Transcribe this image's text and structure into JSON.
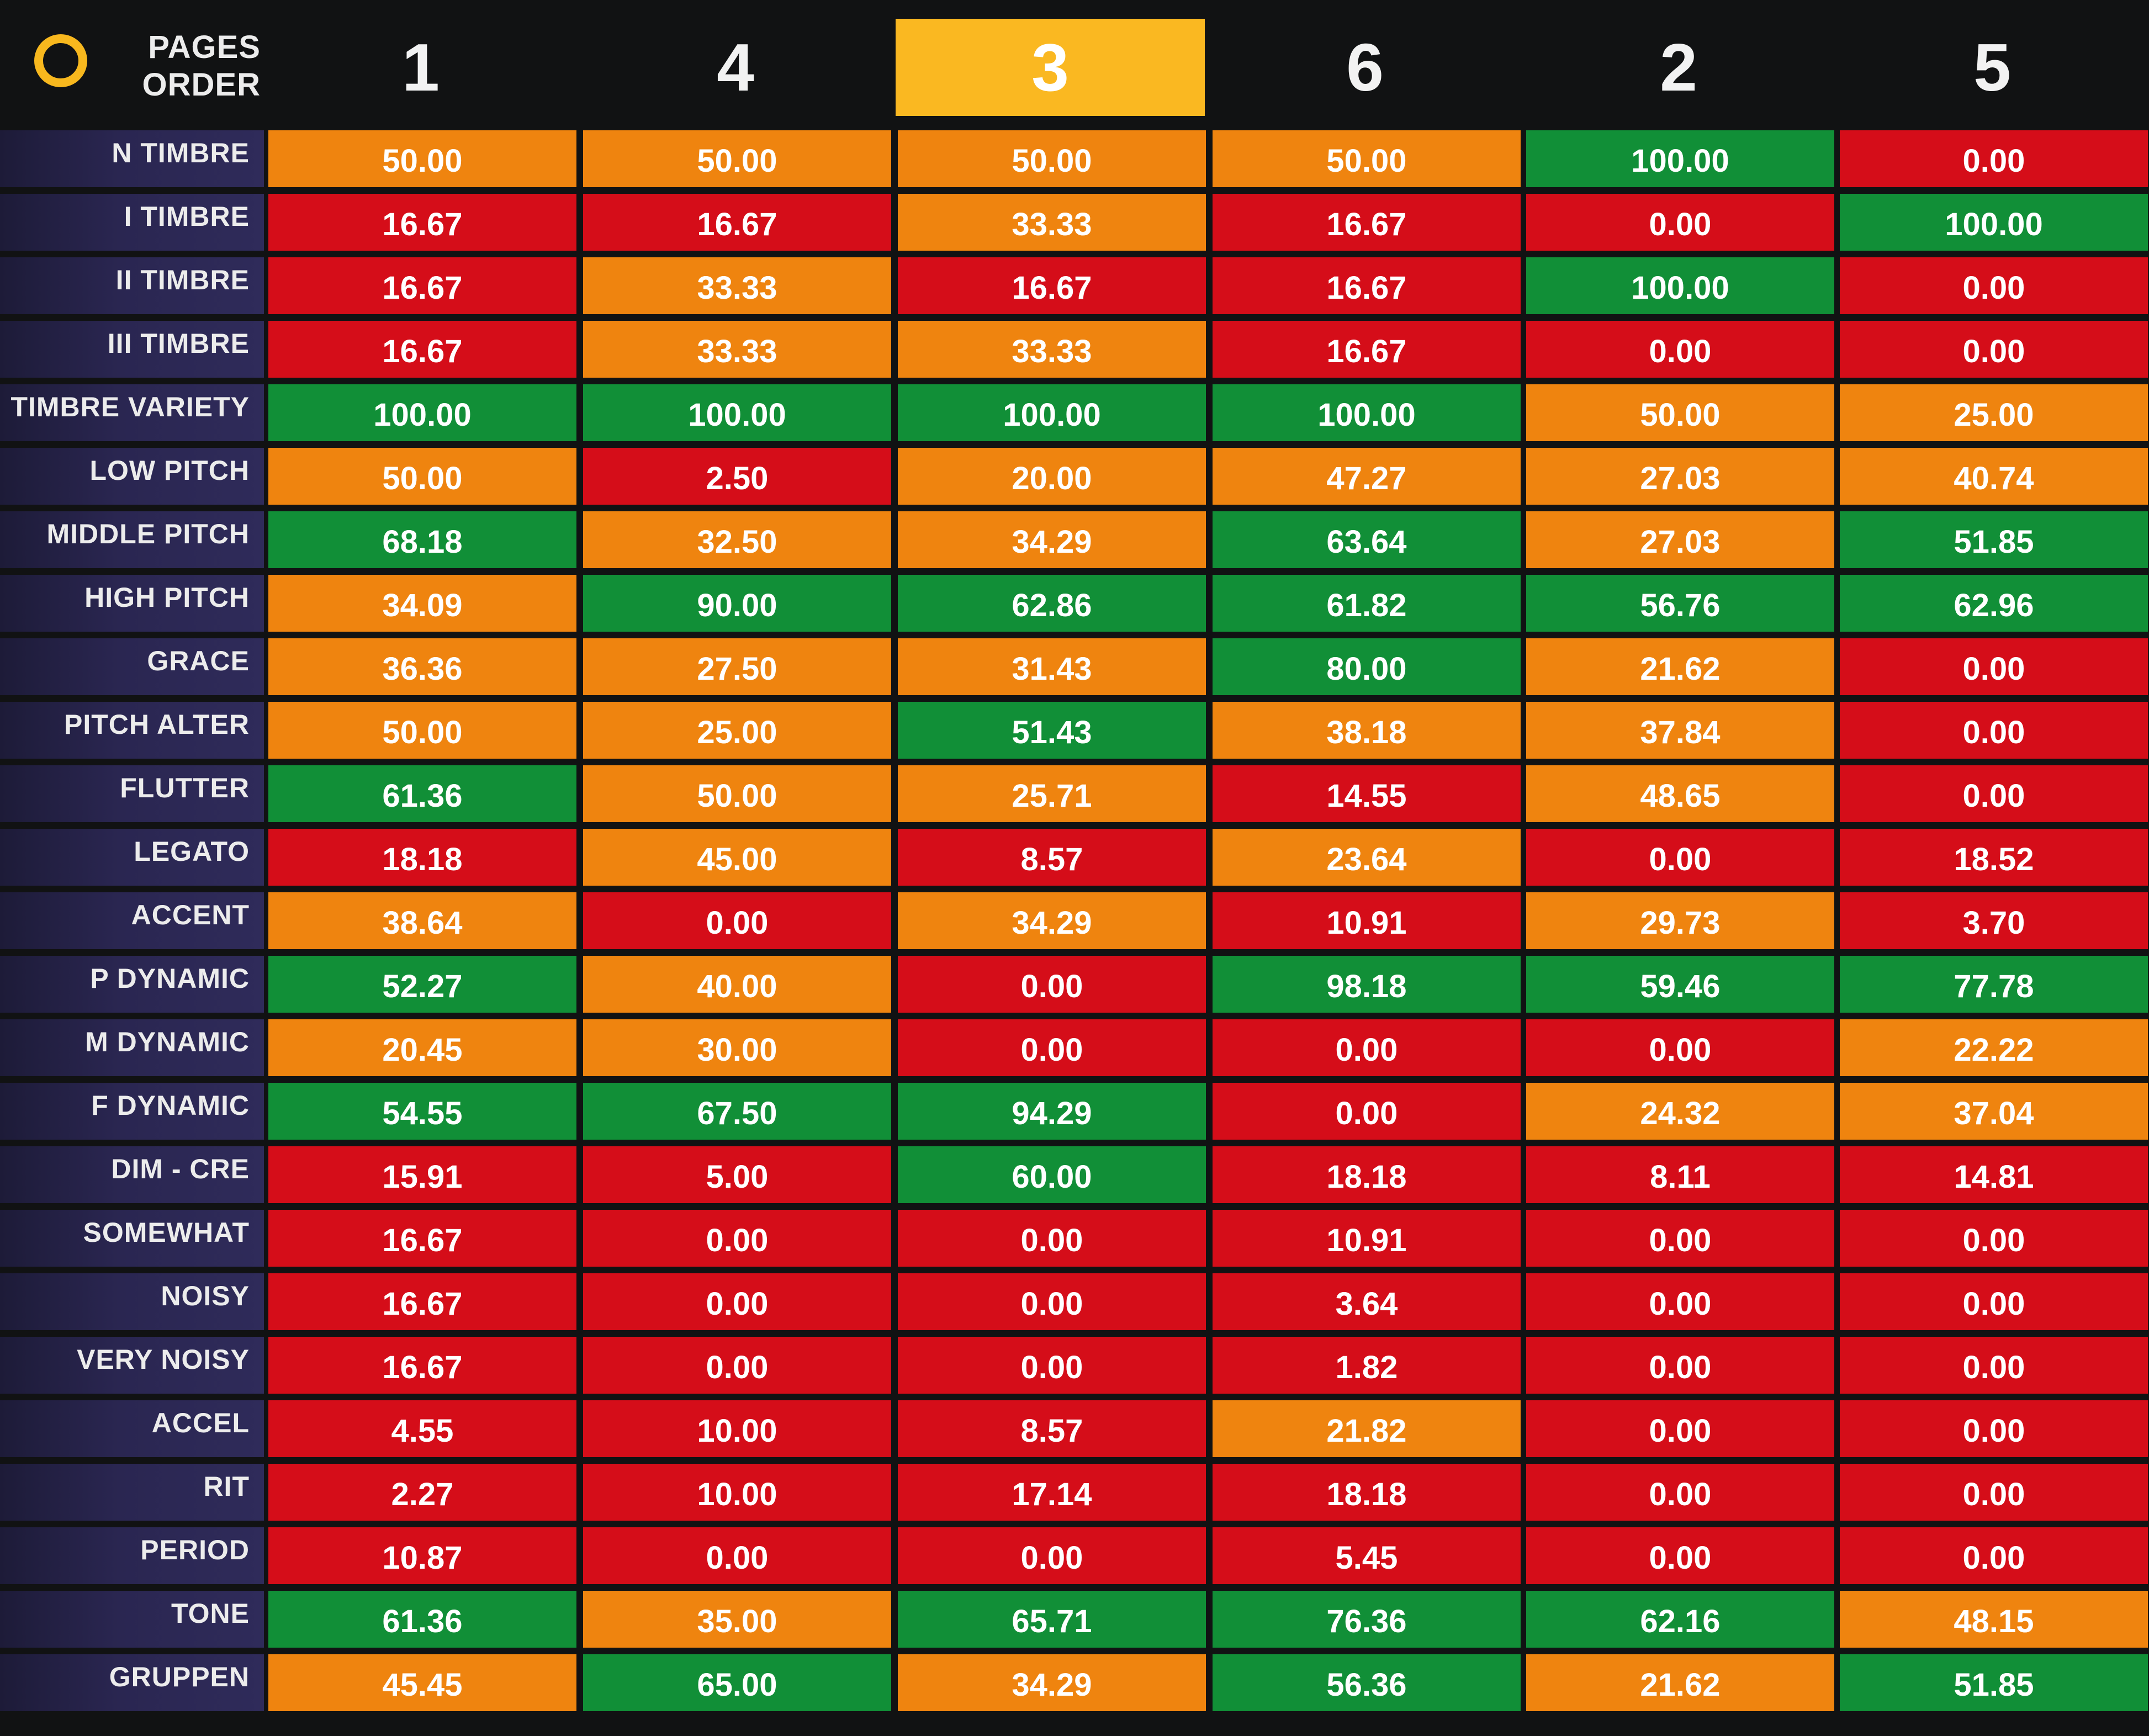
{
  "header": {
    "order_label_line1": "PAGES",
    "order_label_line2": "ORDER",
    "page_tabs": [
      "1",
      "4",
      "3",
      "6",
      "2",
      "5"
    ],
    "active_tab": "3",
    "accent_color": "#fab821"
  },
  "legend_colors": {
    "red": "#d50d19",
    "orange": "#ef840f",
    "green": "#118f37"
  },
  "rows": [
    {
      "label": "N TIMBRE",
      "values": [
        "50.00",
        "50.00",
        "50.00",
        "50.00",
        "100.00",
        "0.00"
      ],
      "colors": [
        "orange",
        "orange",
        "orange",
        "orange",
        "green",
        "red"
      ]
    },
    {
      "label": "I TIMBRE",
      "values": [
        "16.67",
        "16.67",
        "33.33",
        "16.67",
        "0.00",
        "100.00"
      ],
      "colors": [
        "red",
        "red",
        "orange",
        "red",
        "red",
        "green"
      ]
    },
    {
      "label": "II TIMBRE",
      "values": [
        "16.67",
        "33.33",
        "16.67",
        "16.67",
        "100.00",
        "0.00"
      ],
      "colors": [
        "red",
        "orange",
        "red",
        "red",
        "green",
        "red"
      ]
    },
    {
      "label": "III TIMBRE",
      "values": [
        "16.67",
        "33.33",
        "33.33",
        "16.67",
        "0.00",
        "0.00"
      ],
      "colors": [
        "red",
        "orange",
        "orange",
        "red",
        "red",
        "red"
      ]
    },
    {
      "label": "TIMBRE VARIETY",
      "values": [
        "100.00",
        "100.00",
        "100.00",
        "100.00",
        "50.00",
        "25.00"
      ],
      "colors": [
        "green",
        "green",
        "green",
        "green",
        "orange",
        "orange"
      ]
    },
    {
      "label": "LOW PITCH",
      "values": [
        "50.00",
        "2.50",
        "20.00",
        "47.27",
        "27.03",
        "40.74"
      ],
      "colors": [
        "orange",
        "red",
        "orange",
        "orange",
        "orange",
        "orange"
      ]
    },
    {
      "label": "MIDDLE PITCH",
      "values": [
        "68.18",
        "32.50",
        "34.29",
        "63.64",
        "27.03",
        "51.85"
      ],
      "colors": [
        "green",
        "orange",
        "orange",
        "green",
        "orange",
        "green"
      ]
    },
    {
      "label": "HIGH PITCH",
      "values": [
        "34.09",
        "90.00",
        "62.86",
        "61.82",
        "56.76",
        "62.96"
      ],
      "colors": [
        "orange",
        "green",
        "green",
        "green",
        "green",
        "green"
      ]
    },
    {
      "label": "GRACE",
      "values": [
        "36.36",
        "27.50",
        "31.43",
        "80.00",
        "21.62",
        "0.00"
      ],
      "colors": [
        "orange",
        "orange",
        "orange",
        "green",
        "orange",
        "red"
      ]
    },
    {
      "label": "PITCH ALTER",
      "values": [
        "50.00",
        "25.00",
        "51.43",
        "38.18",
        "37.84",
        "0.00"
      ],
      "colors": [
        "orange",
        "orange",
        "green",
        "orange",
        "orange",
        "red"
      ]
    },
    {
      "label": "FLUTTER",
      "values": [
        "61.36",
        "50.00",
        "25.71",
        "14.55",
        "48.65",
        "0.00"
      ],
      "colors": [
        "green",
        "orange",
        "orange",
        "red",
        "orange",
        "red"
      ]
    },
    {
      "label": "LEGATO",
      "values": [
        "18.18",
        "45.00",
        "8.57",
        "23.64",
        "0.00",
        "18.52"
      ],
      "colors": [
        "red",
        "orange",
        "red",
        "orange",
        "red",
        "red"
      ]
    },
    {
      "label": "ACCENT",
      "values": [
        "38.64",
        "0.00",
        "34.29",
        "10.91",
        "29.73",
        "3.70"
      ],
      "colors": [
        "orange",
        "red",
        "orange",
        "red",
        "orange",
        "red"
      ]
    },
    {
      "label": "P DYNAMIC",
      "values": [
        "52.27",
        "40.00",
        "0.00",
        "98.18",
        "59.46",
        "77.78"
      ],
      "colors": [
        "green",
        "orange",
        "red",
        "green",
        "green",
        "green"
      ]
    },
    {
      "label": "M DYNAMIC",
      "values": [
        "20.45",
        "30.00",
        "0.00",
        "0.00",
        "0.00",
        "22.22"
      ],
      "colors": [
        "orange",
        "orange",
        "red",
        "red",
        "red",
        "orange"
      ]
    },
    {
      "label": "F DYNAMIC",
      "values": [
        "54.55",
        "67.50",
        "94.29",
        "0.00",
        "24.32",
        "37.04"
      ],
      "colors": [
        "green",
        "green",
        "green",
        "red",
        "orange",
        "orange"
      ]
    },
    {
      "label": "DIM - CRE",
      "values": [
        "15.91",
        "5.00",
        "60.00",
        "18.18",
        "8.11",
        "14.81"
      ],
      "colors": [
        "red",
        "red",
        "green",
        "red",
        "red",
        "red"
      ]
    },
    {
      "label": "SOMEWHAT",
      "values": [
        "16.67",
        "0.00",
        "0.00",
        "10.91",
        "0.00",
        "0.00"
      ],
      "colors": [
        "red",
        "red",
        "red",
        "red",
        "red",
        "red"
      ]
    },
    {
      "label": "NOISY",
      "values": [
        "16.67",
        "0.00",
        "0.00",
        "3.64",
        "0.00",
        "0.00"
      ],
      "colors": [
        "red",
        "red",
        "red",
        "red",
        "red",
        "red"
      ]
    },
    {
      "label": "VERY NOISY",
      "values": [
        "16.67",
        "0.00",
        "0.00",
        "1.82",
        "0.00",
        "0.00"
      ],
      "colors": [
        "red",
        "red",
        "red",
        "red",
        "red",
        "red"
      ]
    },
    {
      "label": "ACCEL",
      "values": [
        "4.55",
        "10.00",
        "8.57",
        "21.82",
        "0.00",
        "0.00"
      ],
      "colors": [
        "red",
        "red",
        "red",
        "orange",
        "red",
        "red"
      ]
    },
    {
      "label": "RIT",
      "values": [
        "2.27",
        "10.00",
        "17.14",
        "18.18",
        "0.00",
        "0.00"
      ],
      "colors": [
        "red",
        "red",
        "red",
        "red",
        "red",
        "red"
      ]
    },
    {
      "label": "PERIOD",
      "values": [
        "10.87",
        "0.00",
        "0.00",
        "5.45",
        "0.00",
        "0.00"
      ],
      "colors": [
        "red",
        "red",
        "red",
        "red",
        "red",
        "red"
      ]
    },
    {
      "label": "TONE",
      "values": [
        "61.36",
        "35.00",
        "65.71",
        "76.36",
        "62.16",
        "48.15"
      ],
      "colors": [
        "green",
        "orange",
        "green",
        "green",
        "green",
        "orange"
      ]
    },
    {
      "label": "GRUPPEN",
      "values": [
        "45.45",
        "65.00",
        "34.29",
        "56.36",
        "21.62",
        "51.85"
      ],
      "colors": [
        "orange",
        "green",
        "orange",
        "green",
        "orange",
        "green"
      ]
    }
  ]
}
